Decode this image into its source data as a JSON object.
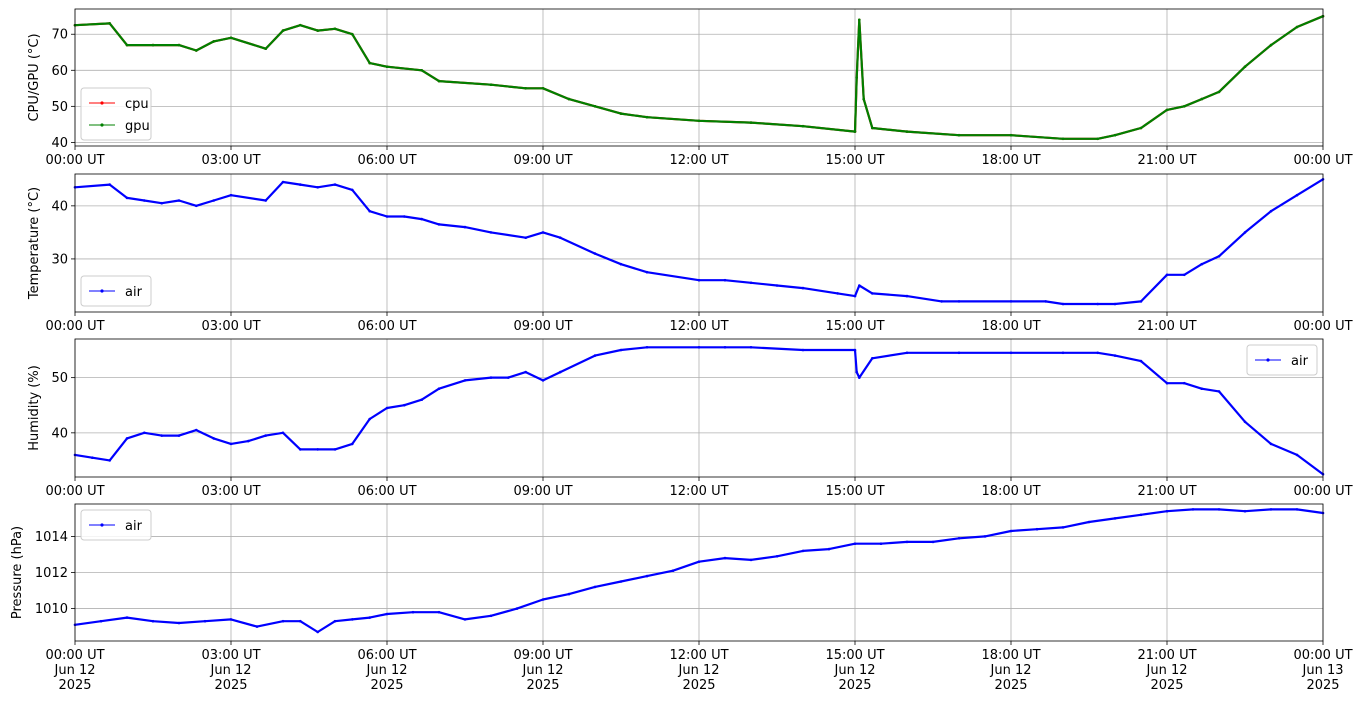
{
  "chart_data": [
    {
      "type": "line",
      "ylabel": "CPU/GPU (°C)",
      "xlabel": "",
      "yticks": [
        40,
        50,
        60,
        70
      ],
      "ylim": [
        39,
        77
      ],
      "xlim": [
        "2025-06-12 00:00",
        "2025-06-13 00:00"
      ],
      "x_ticks": [
        "00:00 UT",
        "03:00 UT",
        "06:00 UT",
        "09:00 UT",
        "12:00 UT",
        "15:00 UT",
        "18:00 UT",
        "21:00 UT",
        "00:00 UT"
      ],
      "grid": true,
      "legend_position": "lower-left",
      "series": [
        {
          "name": "cpu",
          "color": "#ff0000",
          "x": [
            "00:00",
            "00:40",
            "01:00",
            "01:30",
            "02:00",
            "02:20",
            "02:40",
            "03:00",
            "03:40",
            "04:00",
            "04:20",
            "04:40",
            "05:00",
            "05:20",
            "05:40",
            "06:00",
            "06:40",
            "07:00",
            "08:00",
            "08:40",
            "09:00",
            "09:30",
            "10:00",
            "10:30",
            "11:00",
            "12:00",
            "13:00",
            "14:00",
            "15:00",
            "15:02",
            "15:05",
            "15:10",
            "15:20",
            "16:00",
            "17:00",
            "18:00",
            "19:00",
            "19:40",
            "20:00",
            "20:30",
            "21:00",
            "21:20",
            "21:40",
            "22:00",
            "22:30",
            "23:00",
            "23:30",
            "24:00"
          ],
          "y": [
            72.5,
            73,
            67,
            67,
            67,
            65.5,
            68,
            69,
            66,
            71,
            72.5,
            71,
            71.5,
            70,
            62,
            61,
            60,
            57,
            56,
            55,
            55,
            52,
            50,
            48,
            47,
            46,
            45.5,
            44.5,
            43,
            58,
            74,
            52,
            44,
            43,
            42,
            42,
            41,
            41,
            42,
            44,
            49,
            50,
            52,
            54,
            61,
            67,
            72,
            75
          ]
        },
        {
          "name": "gpu",
          "color": "#008000",
          "x": [
            "00:00",
            "00:40",
            "01:00",
            "01:30",
            "02:00",
            "02:20",
            "02:40",
            "03:00",
            "03:40",
            "04:00",
            "04:20",
            "04:40",
            "05:00",
            "05:20",
            "05:40",
            "06:00",
            "06:40",
            "07:00",
            "08:00",
            "08:40",
            "09:00",
            "09:30",
            "10:00",
            "10:30",
            "11:00",
            "12:00",
            "13:00",
            "14:00",
            "15:00",
            "15:02",
            "15:05",
            "15:10",
            "15:20",
            "16:00",
            "17:00",
            "18:00",
            "19:00",
            "19:40",
            "20:00",
            "20:30",
            "21:00",
            "21:20",
            "21:40",
            "22:00",
            "22:30",
            "23:00",
            "23:30",
            "24:00"
          ],
          "y": [
            72.5,
            73,
            67,
            67,
            67,
            65.5,
            68,
            69,
            66,
            71,
            72.5,
            71,
            71.5,
            70,
            62,
            61,
            60,
            57,
            56,
            55,
            55,
            52,
            50,
            48,
            47,
            46,
            45.5,
            44.5,
            43,
            58,
            74,
            52,
            44,
            43,
            42,
            42,
            41,
            41,
            42,
            44,
            49,
            50,
            52,
            54,
            61,
            67,
            72,
            75
          ]
        }
      ]
    },
    {
      "type": "line",
      "ylabel": "Temperature (°C)",
      "xlabel": "",
      "yticks": [
        30,
        40
      ],
      "ylim": [
        20,
        46
      ],
      "xlim": [
        "2025-06-12 00:00",
        "2025-06-13 00:00"
      ],
      "x_ticks": [
        "00:00 UT",
        "03:00 UT",
        "06:00 UT",
        "09:00 UT",
        "12:00 UT",
        "15:00 UT",
        "18:00 UT",
        "21:00 UT",
        "00:00 UT"
      ],
      "grid": true,
      "legend_position": "lower-left",
      "series": [
        {
          "name": "air",
          "color": "#0000ff",
          "x": [
            "00:00",
            "00:40",
            "01:00",
            "01:20",
            "01:40",
            "02:00",
            "02:20",
            "02:40",
            "03:00",
            "03:40",
            "04:00",
            "04:20",
            "04:40",
            "05:00",
            "05:20",
            "05:40",
            "06:00",
            "06:20",
            "06:40",
            "07:00",
            "07:30",
            "08:00",
            "08:40",
            "09:00",
            "09:20",
            "10:00",
            "10:30",
            "11:00",
            "12:00",
            "12:30",
            "13:00",
            "13:30",
            "14:00",
            "14:40",
            "15:00",
            "15:05",
            "15:20",
            "16:00",
            "16:40",
            "17:00",
            "18:00",
            "18:40",
            "19:00",
            "19:40",
            "20:00",
            "20:30",
            "21:00",
            "21:20",
            "21:40",
            "22:00",
            "22:30",
            "23:00",
            "23:30",
            "24:00"
          ],
          "y": [
            43.5,
            44,
            41.5,
            41,
            40.5,
            41,
            40,
            41,
            42,
            41,
            44.5,
            44,
            43.5,
            44,
            43,
            39,
            38,
            38,
            37.5,
            36.5,
            36,
            35,
            34,
            35,
            34,
            31,
            29,
            27.5,
            26,
            26,
            25.5,
            25,
            24.5,
            23.5,
            23,
            25,
            23.5,
            23,
            22,
            22,
            22,
            22,
            21.5,
            21.5,
            21.5,
            22,
            27,
            27,
            29,
            30.5,
            35,
            39,
            42,
            45
          ]
        }
      ]
    },
    {
      "type": "line",
      "ylabel": "Humidity (%)",
      "xlabel": "",
      "yticks": [
        40,
        50
      ],
      "ylim": [
        32,
        57
      ],
      "xlim": [
        "2025-06-12 00:00",
        "2025-06-13 00:00"
      ],
      "x_ticks": [
        "00:00 UT",
        "03:00 UT",
        "06:00 UT",
        "09:00 UT",
        "12:00 UT",
        "15:00 UT",
        "18:00 UT",
        "21:00 UT",
        "00:00 UT"
      ],
      "grid": true,
      "legend_position": "upper-right",
      "series": [
        {
          "name": "air",
          "color": "#0000ff",
          "x": [
            "00:00",
            "00:20",
            "00:40",
            "01:00",
            "01:20",
            "01:40",
            "02:00",
            "02:20",
            "02:40",
            "03:00",
            "03:20",
            "03:40",
            "04:00",
            "04:20",
            "04:40",
            "05:00",
            "05:20",
            "05:40",
            "06:00",
            "06:20",
            "06:40",
            "07:00",
            "07:30",
            "08:00",
            "08:20",
            "08:40",
            "09:00",
            "09:20",
            "10:00",
            "10:30",
            "11:00",
            "12:00",
            "12:30",
            "13:00",
            "14:00",
            "15:00",
            "15:02",
            "15:05",
            "15:20",
            "16:00",
            "17:00",
            "18:00",
            "19:00",
            "19:40",
            "20:00",
            "20:30",
            "21:00",
            "21:20",
            "21:40",
            "22:00",
            "22:30",
            "23:00",
            "23:30",
            "24:00"
          ],
          "y": [
            36,
            35.5,
            35,
            39,
            40,
            39.5,
            39.5,
            40.5,
            39,
            38,
            38.5,
            39.5,
            40,
            37,
            37,
            37,
            38,
            42.5,
            44.5,
            45,
            46,
            48,
            49.5,
            50,
            50,
            51,
            49.5,
            51,
            54,
            55,
            55.5,
            55.5,
            55.5,
            55.5,
            55,
            55,
            51,
            50,
            53.5,
            54.5,
            54.5,
            54.5,
            54.5,
            54.5,
            54,
            53,
            49,
            49,
            48,
            47.5,
            42,
            38,
            36,
            32.5
          ]
        }
      ]
    },
    {
      "type": "line",
      "ylabel": "Pressure (hPa)",
      "xlabel": "",
      "yticks": [
        1010,
        1012,
        1014
      ],
      "ylim": [
        1008.2,
        1015.8
      ],
      "xlim": [
        "2025-06-12 00:00",
        "2025-06-13 00:00"
      ],
      "x_ticks": [
        "00:00 UT\nJun 12\n2025",
        "03:00 UT\nJun 12\n2025",
        "06:00 UT\nJun 12\n2025",
        "09:00 UT\nJun 12\n2025",
        "12:00 UT\nJun 12\n2025",
        "15:00 UT\nJun 12\n2025",
        "18:00 UT\nJun 12\n2025",
        "21:00 UT\nJun 12\n2025",
        "00:00 UT\nJun 13\n2025"
      ],
      "grid": true,
      "legend_position": "upper-left",
      "series": [
        {
          "name": "air",
          "color": "#0000ff",
          "x": [
            "00:00",
            "00:30",
            "01:00",
            "01:30",
            "02:00",
            "02:30",
            "03:00",
            "03:30",
            "04:00",
            "04:20",
            "04:40",
            "05:00",
            "05:20",
            "05:40",
            "06:00",
            "06:30",
            "07:00",
            "07:30",
            "08:00",
            "08:30",
            "09:00",
            "09:30",
            "10:00",
            "10:30",
            "11:00",
            "11:30",
            "12:00",
            "12:30",
            "13:00",
            "13:30",
            "14:00",
            "14:30",
            "15:00",
            "15:30",
            "16:00",
            "16:30",
            "17:00",
            "17:30",
            "18:00",
            "18:30",
            "19:00",
            "19:30",
            "20:00",
            "20:30",
            "21:00",
            "21:30",
            "22:00",
            "22:30",
            "23:00",
            "23:30",
            "24:00"
          ],
          "y": [
            1009.1,
            1009.3,
            1009.5,
            1009.3,
            1009.2,
            1009.3,
            1009.4,
            1009,
            1009.3,
            1009.3,
            1008.7,
            1009.3,
            1009.4,
            1009.5,
            1009.7,
            1009.8,
            1009.8,
            1009.4,
            1009.6,
            1010,
            1010.5,
            1010.8,
            1011.2,
            1011.5,
            1011.8,
            1012.1,
            1012.6,
            1012.8,
            1012.7,
            1012.9,
            1013.2,
            1013.3,
            1013.6,
            1013.6,
            1013.7,
            1013.7,
            1013.9,
            1014,
            1014.3,
            1014.4,
            1014.5,
            1014.8,
            1015,
            1015.2,
            1015.4,
            1015.5,
            1015.5,
            1015.4,
            1015.5,
            1015.5,
            1015.3
          ]
        }
      ]
    }
  ]
}
